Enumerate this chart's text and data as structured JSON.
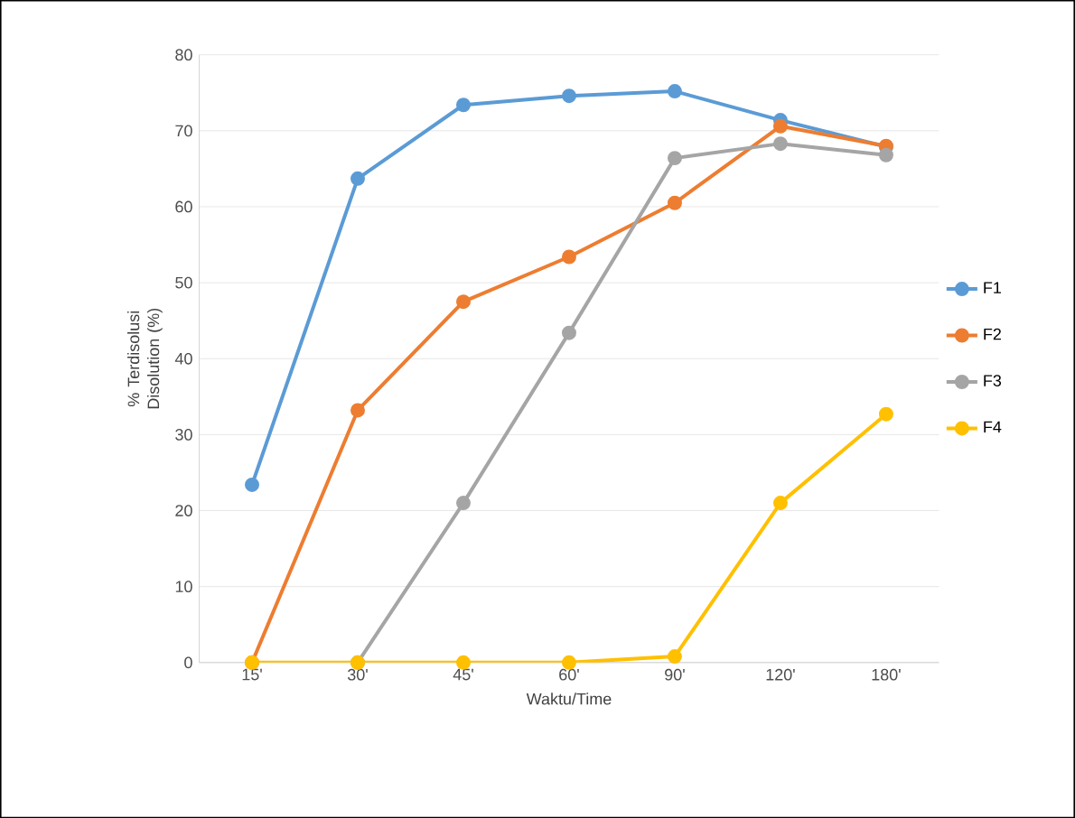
{
  "chart_data": {
    "type": "line",
    "xlabel": "Waktu/Time",
    "ylabel": "% Terdisolusi Disolution (%)",
    "categories": [
      "15'",
      "30'",
      "45'",
      "60'",
      "90'",
      "120'",
      "180'"
    ],
    "series": [
      {
        "name": "F1",
        "color": "#5b9bd5",
        "values": [
          23.4,
          63.7,
          73.4,
          74.6,
          75.2,
          71.4,
          67.9
        ]
      },
      {
        "name": "F2",
        "color": "#ed7d31",
        "values": [
          0,
          33.2,
          47.5,
          53.4,
          60.5,
          70.6,
          68.0
        ]
      },
      {
        "name": "F3",
        "color": "#a5a5a5",
        "values": [
          null,
          0,
          21.0,
          43.4,
          66.4,
          68.3,
          66.8
        ]
      },
      {
        "name": "F4",
        "color": "#ffc000",
        "values": [
          0,
          0,
          0,
          0,
          0.8,
          21.0,
          32.7
        ]
      }
    ],
    "ylim": [
      0,
      80
    ],
    "yticks": [
      0,
      10,
      20,
      30,
      40,
      50,
      60,
      70,
      80
    ],
    "grid": "y",
    "legend": "right",
    "marker": "circle",
    "line_style": "solid"
  }
}
